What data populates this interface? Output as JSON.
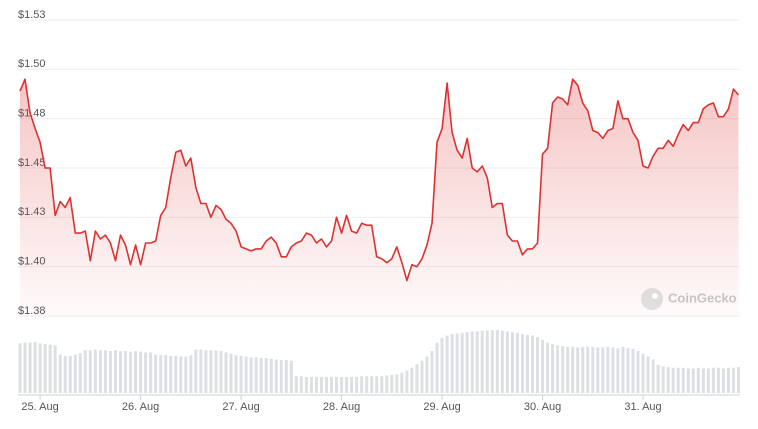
{
  "chart_data": {
    "type": "line",
    "watermark": "CoinGecko",
    "x": [
      24.8,
      24.85,
      24.9,
      24.95,
      25,
      25.05,
      25.1,
      25.15,
      25.2,
      25.25,
      25.3,
      25.35,
      25.4,
      25.45,
      25.5,
      25.55,
      25.6,
      25.65,
      25.7,
      25.75,
      25.8,
      25.85,
      25.9,
      25.95,
      26,
      26.05,
      26.1,
      26.15,
      26.2,
      26.25,
      26.3,
      26.35,
      26.4,
      26.45,
      26.5,
      26.55,
      26.6,
      26.65,
      26.7,
      26.75,
      26.8,
      26.85,
      26.9,
      26.95,
      27,
      27.05,
      27.1,
      27.15,
      27.2,
      27.25,
      27.3,
      27.35,
      27.4,
      27.45,
      27.5,
      27.55,
      27.6,
      27.65,
      27.7,
      27.75,
      27.8,
      27.85,
      27.9,
      27.95,
      28,
      28.05,
      28.1,
      28.15,
      28.2,
      28.25,
      28.3,
      28.35,
      28.4,
      28.45,
      28.5,
      28.55,
      28.6,
      28.65,
      28.7,
      28.75,
      28.8,
      28.85,
      28.9,
      28.95,
      29,
      29.05,
      29.1,
      29.15,
      29.2,
      29.25,
      29.3,
      29.35,
      29.4,
      29.45,
      29.5,
      29.55,
      29.6,
      29.65,
      29.7,
      29.75,
      29.8,
      29.85,
      29.9,
      29.95,
      30,
      30.05,
      30.1,
      30.15,
      30.2,
      30.25,
      30.3,
      30.35,
      30.4,
      30.45,
      30.5,
      30.55,
      30.6,
      30.65,
      30.7,
      30.75,
      30.8,
      30.85,
      30.9,
      30.95,
      31,
      31.05,
      31.1,
      31.15,
      31.2,
      31.25,
      31.3,
      31.35,
      31.4,
      31.45,
      31.5,
      31.55,
      31.6,
      31.65,
      31.7,
      31.75,
      31.8,
      31.85,
      31.9,
      31.95
    ],
    "series": [
      {
        "color": "#dc3232",
        "values": [
          1.489,
          1.495,
          1.478,
          1.47,
          1.463,
          1.45,
          1.45,
          1.426,
          1.433,
          1.43,
          1.435,
          1.417,
          1.417,
          1.418,
          1.403,
          1.418,
          1.414,
          1.416,
          1.412,
          1.403,
          1.416,
          1.411,
          1.401,
          1.411,
          1.401,
          1.412,
          1.412,
          1.413,
          1.426,
          1.43,
          1.445,
          1.458,
          1.459,
          1.451,
          1.455,
          1.44,
          1.432,
          1.432,
          1.425,
          1.431,
          1.429,
          1.424,
          1.422,
          1.418,
          1.41,
          1.409,
          1.408,
          1.409,
          1.409,
          1.413,
          1.415,
          1.412,
          1.405,
          1.405,
          1.41,
          1.412,
          1.413,
          1.417,
          1.416,
          1.412,
          1.414,
          1.41,
          1.413,
          1.425,
          1.417,
          1.426,
          1.418,
          1.417,
          1.422,
          1.421,
          1.421,
          1.405,
          1.404,
          1.402,
          1.404,
          1.41,
          1.402,
          1.393,
          1.401,
          1.4,
          1.404,
          1.411,
          1.422,
          1.463,
          1.47,
          1.493,
          1.468,
          1.459,
          1.455,
          1.465,
          1.45,
          1.448,
          1.451,
          1.445,
          1.43,
          1.432,
          1.432,
          1.416,
          1.413,
          1.413,
          1.406,
          1.409,
          1.409,
          1.412,
          1.457,
          1.46,
          1.483,
          1.486,
          1.485,
          1.482,
          1.495,
          1.492,
          1.483,
          1.479,
          1.469,
          1.468,
          1.465,
          1.469,
          1.47,
          1.484,
          1.475,
          1.475,
          1.468,
          1.464,
          1.451,
          1.45,
          1.456,
          1.46,
          1.46,
          1.464,
          1.461,
          1.467,
          1.472,
          1.469,
          1.473,
          1.473,
          1.48,
          1.482,
          1.483,
          1.476,
          1.476,
          1.48,
          1.49,
          1.487
        ]
      },
      {
        "color": "#dcdfe4",
        "axis": "y2",
        "values": [
          71,
          72,
          72,
          73,
          71,
          70,
          69,
          68,
          55,
          53,
          53,
          55,
          57,
          61,
          61,
          62,
          61,
          61,
          60,
          61,
          60,
          60,
          59,
          60,
          59,
          58,
          58,
          55,
          54,
          54,
          53,
          53,
          52,
          52,
          54,
          62,
          62,
          61,
          61,
          61,
          60,
          58,
          56,
          54,
          53,
          52,
          51,
          51,
          50,
          50,
          49,
          48,
          47,
          47,
          46,
          24,
          24,
          23,
          23,
          23,
          23,
          23,
          23,
          23,
          23,
          23,
          23,
          23,
          24,
          24,
          24,
          24,
          24,
          25,
          26,
          27,
          29,
          32,
          36,
          41,
          46,
          52,
          60,
          72,
          79,
          82,
          84,
          85,
          86,
          87,
          88,
          88,
          89,
          89,
          90,
          90,
          89,
          88,
          87,
          86,
          84,
          83,
          82,
          80,
          76,
          72,
          70,
          68,
          67,
          66,
          66,
          65,
          66,
          66,
          66,
          65,
          65,
          66,
          65,
          64,
          66,
          64,
          63,
          60,
          56,
          52,
          48,
          40,
          38,
          37,
          36,
          36,
          36,
          35,
          35,
          36,
          35,
          35,
          36,
          36,
          35,
          36,
          36,
          37
        ]
      }
    ],
    "xlim": [
      24.8,
      31.95
    ],
    "xticks": [
      {
        "value": 25,
        "label": "25. Aug"
      },
      {
        "value": 26,
        "label": "26. Aug"
      },
      {
        "value": 27,
        "label": "27. Aug"
      },
      {
        "value": 28,
        "label": "28. Aug"
      },
      {
        "value": 29,
        "label": "29. Aug"
      },
      {
        "value": 30,
        "label": "30. Aug"
      },
      {
        "value": 31,
        "label": "31. Aug"
      }
    ],
    "ylim": [
      1.375,
      1.525
    ],
    "yticks": [
      {
        "value": 1.375,
        "label": "$1.38"
      },
      {
        "value": 1.4,
        "label": "$1.40"
      },
      {
        "value": 1.425,
        "label": "$1.43"
      },
      {
        "value": 1.45,
        "label": "$1.45"
      },
      {
        "value": 1.475,
        "label": "$1.48"
      },
      {
        "value": 1.5,
        "label": "$1.50"
      },
      {
        "value": 1.525,
        "label": "$1.53"
      }
    ],
    "y2lim": [
      0,
      100
    ],
    "grid": true
  }
}
